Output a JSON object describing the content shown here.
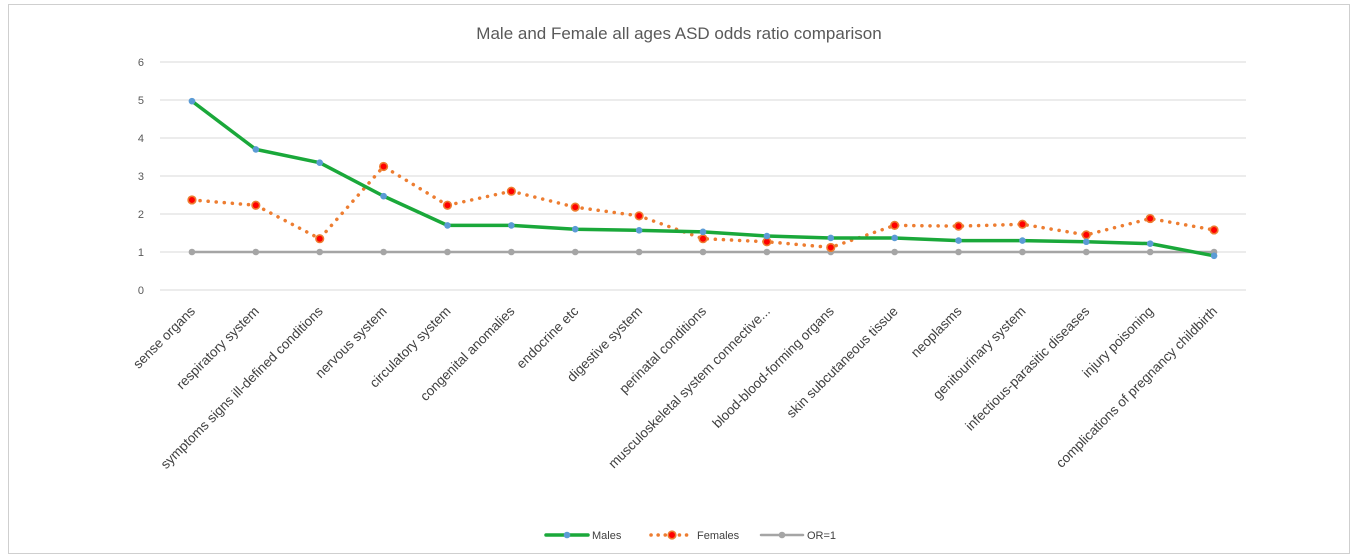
{
  "chart_data": {
    "type": "line",
    "title": "Male and Female all ages ASD odds ratio comparison",
    "xlabel": "",
    "ylabel": "",
    "ylim": [
      0,
      6
    ],
    "yticks": [
      "0",
      "1",
      "2",
      "3",
      "4",
      "5",
      "6"
    ],
    "grid": true,
    "legend_position": "bottom",
    "categories": [
      "sense organs",
      "respiratory system",
      "symptoms signs ill-defined conditions",
      "nervous system",
      "circulatory system",
      "congenital anomalies",
      "endocrine etc",
      "digestive system",
      "perinatal conditions",
      "musculoskeletal system connective...",
      "blood-blood-forming organs",
      "skin subcutaneous tissue",
      "neoplasms",
      "genitourinary system",
      "infectious-parasitic diseases",
      "injury poisoning",
      "complications of pregnancy childbirth"
    ],
    "series": [
      {
        "name": "Males",
        "color": "#1aa83a",
        "marker": "#5b9bd5",
        "style": "solid",
        "values": [
          4.97,
          3.7,
          3.35,
          2.47,
          1.7,
          1.7,
          1.6,
          1.57,
          1.53,
          1.42,
          1.37,
          1.37,
          1.3,
          1.3,
          1.27,
          1.22,
          0.9
        ]
      },
      {
        "name": "Females",
        "color": "#ed7d31",
        "marker": "#ff0000",
        "style": "dotted",
        "values": [
          2.37,
          2.23,
          1.35,
          3.25,
          2.23,
          2.6,
          2.18,
          1.95,
          1.35,
          1.27,
          1.12,
          1.7,
          1.68,
          1.73,
          1.45,
          1.88,
          1.58
        ]
      },
      {
        "name": "OR=1",
        "color": "#a5a5a5",
        "marker": "#a5a5a5",
        "style": "solid",
        "values": [
          1,
          1,
          1,
          1,
          1,
          1,
          1,
          1,
          1,
          1,
          1,
          1,
          1,
          1,
          1,
          1,
          1
        ]
      }
    ]
  }
}
